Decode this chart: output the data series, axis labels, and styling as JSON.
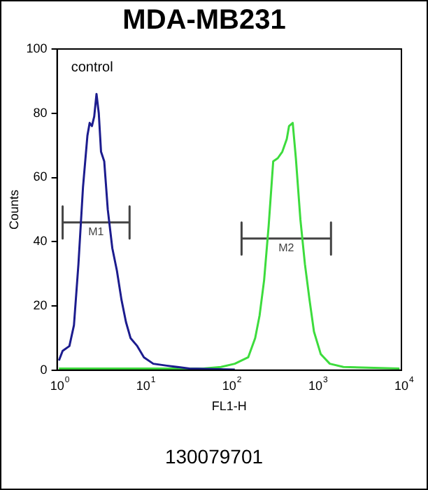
{
  "chart_data": {
    "type": "line",
    "title": "MDA-MB231",
    "xlabel": "FL1-H",
    "ylabel": "Counts",
    "log": "x",
    "xlim": [
      1,
      10000
    ],
    "ylim": [
      0,
      100
    ],
    "xticks": [
      {
        "value": 1,
        "label": "10$^{0}$"
      },
      {
        "value": 10,
        "label": "10$^{1}$"
      },
      {
        "value": 100,
        "label": "10$^{2}$"
      },
      {
        "value": 1000,
        "label": "10$^{3}$"
      },
      {
        "value": 10000,
        "label": "10$^{4}$"
      }
    ],
    "yticks": [
      0,
      20,
      40,
      60,
      80,
      100
    ],
    "grid": false,
    "legend": false,
    "marker": "none",
    "line_style": "solid",
    "series": [
      {
        "color": "#1c1c8e",
        "x": [
          1.05,
          1.16,
          1.39,
          1.57,
          1.77,
          2.0,
          2.25,
          2.39,
          2.54,
          2.7,
          2.87,
          3.05,
          3.24,
          3.53,
          3.88,
          4.38,
          4.95,
          5.59,
          6.31,
          7.13,
          8.54,
          10.2,
          13.1,
          18.8,
          34.4,
          116
        ],
        "values": [
          3,
          6,
          7.5,
          14,
          33,
          57,
          73,
          77,
          76,
          79,
          86,
          80,
          68,
          65,
          50,
          38,
          31,
          22,
          15,
          10,
          7.5,
          4,
          2,
          1.4,
          0.5,
          0.2
        ]
      },
      {
        "color": "#3ddc3d",
        "x": [
          1.05,
          10,
          50,
          80,
          116,
          166,
          200,
          225,
          254,
          287,
          324,
          366,
          413,
          466,
          495,
          546,
          594,
          670,
          757,
          855,
          964,
          1156,
          1472,
          2120,
          9500
        ],
        "values": [
          0.5,
          0.5,
          0.5,
          1,
          2,
          4,
          10,
          17,
          28,
          45,
          65,
          66,
          68,
          72,
          76,
          77,
          66,
          47,
          33,
          22,
          12,
          5,
          2,
          1,
          0.5
        ]
      },
      {
        "name": "M1",
        "color": "#444444",
        "x": [
          1.16,
          1.16,
          1.16,
          6.95,
          6.95,
          6.95
        ],
        "values": [
          51,
          41,
          46,
          46,
          51,
          41
        ]
      },
      {
        "name": "M2",
        "color": "#444444",
        "x": [
          139,
          139,
          139,
          1520,
          1520,
          1520
        ],
        "values": [
          46,
          36,
          41,
          41,
          46,
          36
        ]
      }
    ],
    "annotations": [
      "control",
      "130079701"
    ]
  }
}
